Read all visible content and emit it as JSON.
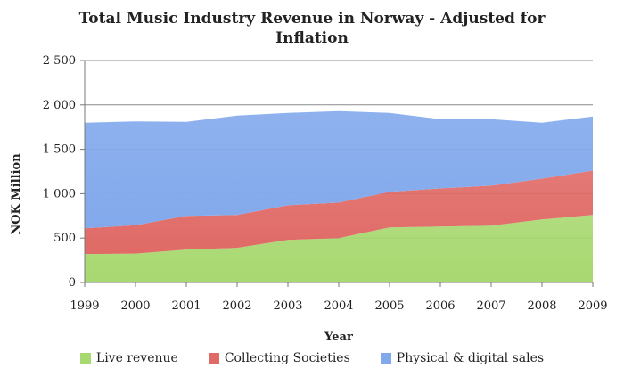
{
  "chart_data": {
    "type": "area",
    "stacked": true,
    "title": "Total Music Industry Revenue in Norway - Adjusted for Inflation",
    "xlabel": "Year",
    "ylabel": "NOK Million",
    "ylim": [
      0,
      2500
    ],
    "yticks": [
      0,
      500,
      1000,
      1500,
      2000,
      2500
    ],
    "ytick_labels": [
      "0",
      "500",
      "1 000",
      "1 500",
      "2 000",
      "2 500"
    ],
    "grid": true,
    "legend_position": "bottom",
    "categories": [
      "1999",
      "2000",
      "2001",
      "2002",
      "2003",
      "2004",
      "2005",
      "2006",
      "2007",
      "2008",
      "2009"
    ],
    "series": [
      {
        "name": "Live revenue",
        "color": "#a8d870",
        "values": [
          320,
          325,
          370,
          390,
          480,
          500,
          620,
          630,
          640,
          710,
          760
        ]
      },
      {
        "name": "Collecting Societies",
        "color": "#e06a66",
        "values": [
          290,
          320,
          380,
          370,
          390,
          400,
          400,
          430,
          450,
          460,
          500
        ]
      },
      {
        "name": "Physical & digital sales",
        "color": "#82a9ec",
        "values": [
          1190,
          1170,
          1060,
          1120,
          1040,
          1030,
          890,
          780,
          750,
          630,
          610
        ]
      }
    ]
  }
}
